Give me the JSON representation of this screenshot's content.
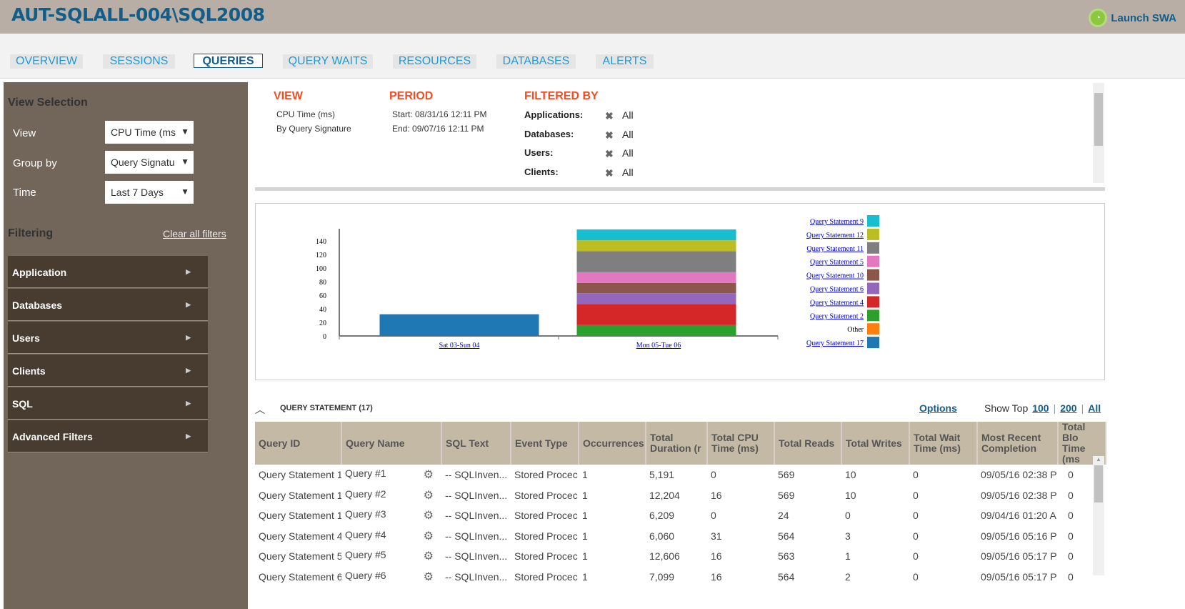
{
  "header": {
    "title": "AUT-SQLALL-004\\SQL2008",
    "launch_label": "Launch SWA"
  },
  "tabs": [
    {
      "label": "OVERVIEW"
    },
    {
      "label": "SESSIONS"
    },
    {
      "label": "QUERIES",
      "active": true
    },
    {
      "label": "QUERY WAITS"
    },
    {
      "label": "RESOURCES"
    },
    {
      "label": "DATABASES"
    },
    {
      "label": "ALERTS"
    }
  ],
  "sidebar": {
    "view_selection_title": "View Selection",
    "view_label": "View",
    "view_value": "CPU Time (ms",
    "groupby_label": "Group by",
    "groupby_value": "Query Signatu",
    "time_label": "Time",
    "time_value": "Last 7 Days",
    "filtering_title": "Filtering",
    "clear_filters": "Clear all filters",
    "filters": [
      {
        "label": "Application"
      },
      {
        "label": "Databases"
      },
      {
        "label": "Users"
      },
      {
        "label": "Clients"
      },
      {
        "label": "SQL"
      },
      {
        "label": "Advanced Filters"
      }
    ]
  },
  "info": {
    "view_title": "VIEW",
    "view_line1": "CPU Time (ms)",
    "view_line2": "By Query Signature",
    "period_title": "PERIOD",
    "period_start": "Start: 08/31/16 12:11 PM",
    "period_end": "End: 09/07/16 12:11 PM",
    "filtered_title": "FILTERED BY",
    "filters": [
      {
        "label": "Applications:",
        "value": "All"
      },
      {
        "label": "Databases:",
        "value": "All"
      },
      {
        "label": "Users:",
        "value": "All"
      },
      {
        "label": "Clients:",
        "value": "All"
      }
    ]
  },
  "chart_data": {
    "type": "bar",
    "stacked": true,
    "categories": [
      "Sat 03-Sun 04",
      "Mon 05-Tue 06"
    ],
    "ylim": [
      0,
      158
    ],
    "yticks": [
      0,
      20,
      40,
      60,
      80,
      100,
      120,
      140
    ],
    "legend_position": "right",
    "series": [
      {
        "name": "Query Statement 17",
        "color": "#1f77b4",
        "values": [
          32,
          0
        ]
      },
      {
        "name": "Other",
        "color": "#ff7f0e",
        "values": [
          0,
          0
        ]
      },
      {
        "name": "Query Statement 2",
        "color": "#2ca02c",
        "values": [
          0,
          16
        ]
      },
      {
        "name": "Query Statement 4",
        "color": "#d62728",
        "values": [
          0,
          31
        ]
      },
      {
        "name": "Query Statement 6",
        "color": "#9467bd",
        "values": [
          0,
          16
        ]
      },
      {
        "name": "Query Statement 10",
        "color": "#8c564b",
        "values": [
          0,
          15
        ]
      },
      {
        "name": "Query Statement 5",
        "color": "#e377c2",
        "values": [
          0,
          16
        ]
      },
      {
        "name": "Query Statement 11",
        "color": "#7f7f7f",
        "values": [
          0,
          31
        ]
      },
      {
        "name": "Query Statement 12",
        "color": "#bcbd22",
        "values": [
          0,
          16
        ]
      },
      {
        "name": "Query Statement 9",
        "color": "#17becf",
        "values": [
          0,
          16
        ]
      }
    ]
  },
  "table": {
    "section_title": "QUERY STATEMENT (17)",
    "options": "Options",
    "show_top": "Show Top",
    "top_options": [
      "100",
      "200",
      "All"
    ],
    "columns": [
      "Query ID",
      "Query Name",
      "SQL Text",
      "Event Type",
      "Occurrences",
      "Total Duration (r",
      "Total CPU Time (ms)",
      "Total Reads",
      "Total Writes",
      "Total Wait Time (ms)",
      "Most Recent Completion",
      "Total Blo Time (ms"
    ],
    "rows": [
      [
        "Query Statement 1",
        "Query #1",
        "-- SQLInven...",
        "Stored Procec",
        "1",
        "5,191",
        "0",
        "569",
        "10",
        "0",
        "09/05/16 02:38 P",
        "0"
      ],
      [
        "Query Statement 1",
        "Query #2",
        "-- SQLInven...",
        "Stored Procec",
        "1",
        "12,204",
        "16",
        "569",
        "10",
        "0",
        "09/05/16 02:38 P",
        "0"
      ],
      [
        "Query Statement 1",
        "Query #3",
        "-- SQLInven...",
        "Stored Procec",
        "1",
        "6,209",
        "0",
        "24",
        "0",
        "0",
        "09/04/16 01:20 A",
        "0"
      ],
      [
        "Query Statement 4",
        "Query #4",
        "-- SQLInven...",
        "Stored Procec",
        "1",
        "6,060",
        "31",
        "564",
        "3",
        "0",
        "09/05/16 05:16 P",
        "0"
      ],
      [
        "Query Statement 5",
        "Query #5",
        "-- SQLInven...",
        "Stored Procec",
        "1",
        "12,606",
        "16",
        "563",
        "1",
        "0",
        "09/05/16 05:17 P",
        "0"
      ],
      [
        "Query Statement 6",
        "Query #6",
        "-- SQLInven...",
        "Stored Procec",
        "1",
        "7,099",
        "16",
        "564",
        "2",
        "0",
        "09/05/16 05:17 P",
        "0"
      ]
    ]
  }
}
